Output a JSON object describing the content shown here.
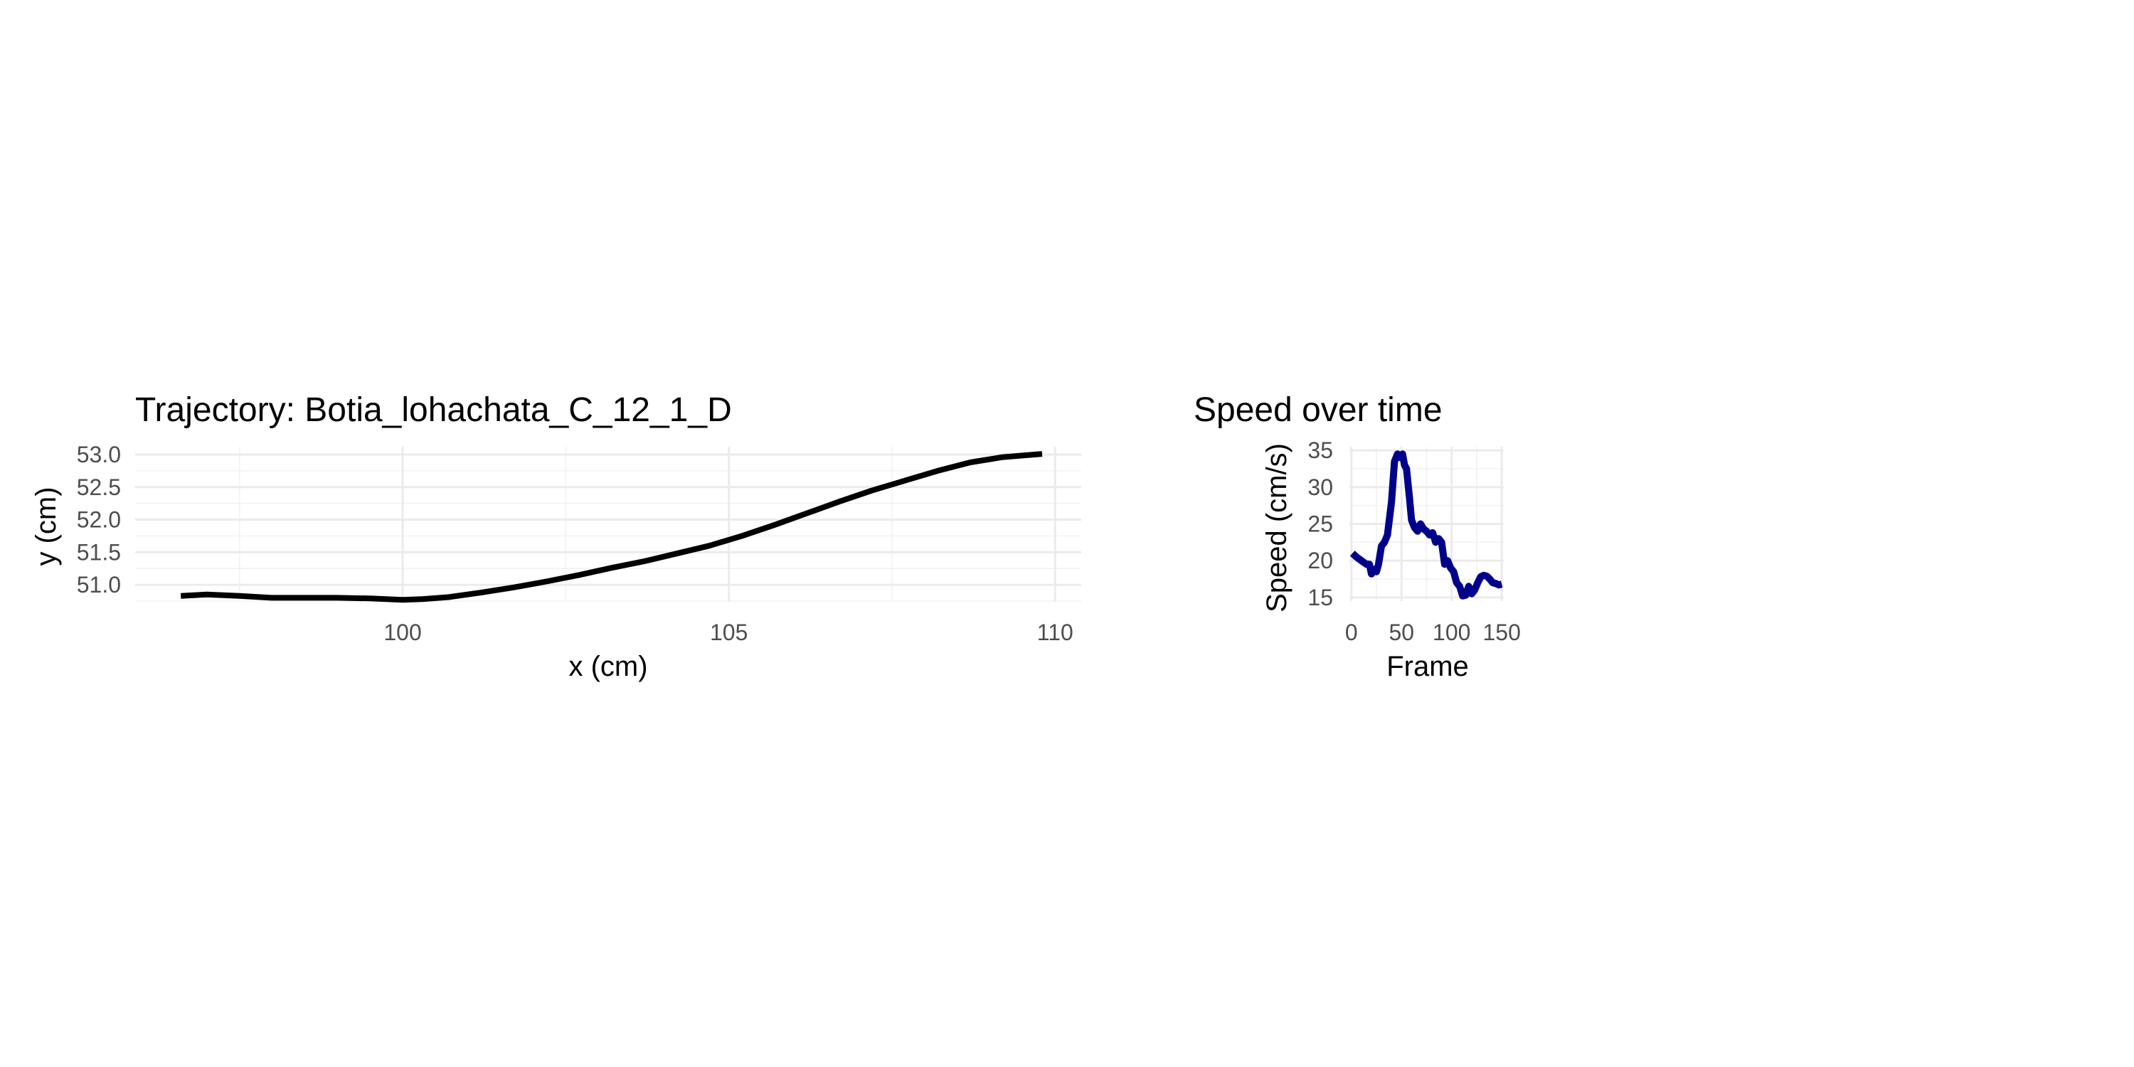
{
  "chart_data": [
    {
      "type": "line",
      "title": "Trajectory: Botia_lohachata_C_12_1_D",
      "xlabel": "x (cm)",
      "ylabel": "y (cm)",
      "xlim": [
        95.9,
        110.4
      ],
      "ylim": [
        50.75,
        53.12
      ],
      "x_ticks": [
        100,
        105,
        110
      ],
      "x_tick_labels": [
        "100",
        "105",
        "110"
      ],
      "y_ticks": [
        51.0,
        51.5,
        52.0,
        52.5,
        53.0
      ],
      "y_tick_labels": [
        "51.0",
        "51.5",
        "52.0",
        "52.5",
        "53.0"
      ],
      "grid": true,
      "color": "#000000",
      "series": [
        {
          "x": [
            96.6,
            97.0,
            97.5,
            98.0,
            98.5,
            99.0,
            99.5,
            100.0,
            100.3,
            100.7,
            101.2,
            101.7,
            102.2,
            102.7,
            103.2,
            103.7,
            104.2,
            104.7,
            105.2,
            105.7,
            106.2,
            106.7,
            107.2,
            107.7,
            108.2,
            108.7,
            109.2,
            109.8
          ],
          "y": [
            50.83,
            50.85,
            50.83,
            50.8,
            50.8,
            50.8,
            50.79,
            50.77,
            50.78,
            50.81,
            50.88,
            50.96,
            51.05,
            51.15,
            51.26,
            51.36,
            51.48,
            51.6,
            51.75,
            51.92,
            52.1,
            52.28,
            52.45,
            52.6,
            52.75,
            52.88,
            52.96,
            53.01
          ]
        }
      ]
    },
    {
      "type": "line",
      "title": "Speed over time",
      "xlabel": "Frame",
      "ylabel": "Speed (cm/s)",
      "xlim": [
        -2,
        152
      ],
      "ylim": [
        14.5,
        35.5
      ],
      "x_ticks": [
        0,
        50,
        100,
        150
      ],
      "x_tick_labels": [
        "0",
        "50",
        "100",
        "150"
      ],
      "y_ticks": [
        15,
        20,
        25,
        30,
        35
      ],
      "y_tick_labels": [
        "15",
        "20",
        "25",
        "30",
        "35"
      ],
      "grid": true,
      "color": "#00008b",
      "series": [
        {
          "x": [
            1,
            5,
            10,
            15,
            18,
            20,
            22,
            25,
            27,
            30,
            33,
            36,
            40,
            43,
            46,
            49,
            51,
            53,
            55,
            58,
            60,
            63,
            66,
            69,
            72,
            75,
            78,
            81,
            84,
            87,
            90,
            93,
            96,
            99,
            102,
            105,
            108,
            111,
            114,
            117,
            120,
            123,
            126,
            129,
            132,
            135,
            138,
            141,
            144,
            147,
            150
          ],
          "y": [
            21.0,
            20.5,
            20.0,
            19.5,
            19.5,
            18.2,
            18.8,
            18.5,
            19.5,
            22.0,
            22.5,
            23.5,
            28.0,
            33.5,
            34.5,
            34.0,
            34.5,
            33.0,
            32.5,
            28.5,
            25.5,
            24.5,
            24.0,
            25.0,
            24.3,
            24.0,
            23.5,
            23.8,
            22.5,
            23.0,
            22.5,
            19.5,
            20.0,
            19.0,
            18.5,
            17.0,
            16.5,
            15.2,
            15.3,
            16.5,
            15.5,
            16.0,
            17.0,
            17.8,
            18.0,
            17.9,
            17.5,
            17.0,
            16.9,
            16.7,
            16.8
          ]
        }
      ]
    }
  ]
}
